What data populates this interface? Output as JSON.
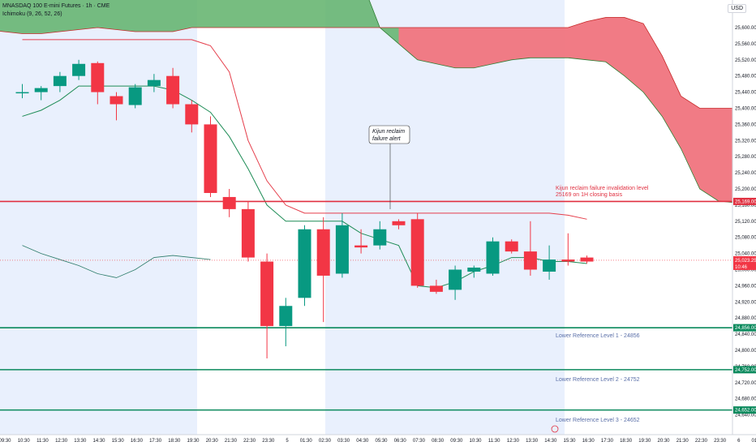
{
  "header": {
    "instrument": "MNASDAQ 100 E-mini Futures · 1h · CME",
    "indicator": "Ichimoku (9, 26, 52, 26)",
    "currency": "USD"
  },
  "colors": {
    "up": "#089981",
    "down": "#f23645",
    "red_level": "#e03040",
    "green_level": "#0b8a5d",
    "cloud_bull": "#5fb26a",
    "cloud_bear": "#f0747e",
    "session_shade": "#e9f0fd",
    "label_text": "#5a6fa8"
  },
  "chart_data": {
    "type": "candlestick",
    "ylim": [
      24640,
      25700
    ],
    "y_ticks": [
      "25,600.00",
      "25,560.00",
      "25,520.00",
      "25,480.00",
      "25,440.00",
      "25,400.00",
      "25,360.00",
      "25,320.00",
      "25,280.00",
      "25,240.00",
      "25,200.00",
      "25,160.00",
      "25,120.00",
      "25,080.00",
      "25,040.00",
      "25,000.00",
      "24,960.00",
      "24,920.00",
      "24,880.00",
      "24,840.00",
      "24,800.00",
      "24,760.00",
      "24,720.00",
      "24,680.00",
      "24,640.00"
    ],
    "x_ticks": [
      "09:30",
      "10:30",
      "11:30",
      "12:30",
      "13:30",
      "14:30",
      "15:30",
      "16:30",
      "17:30",
      "18:30",
      "19:30",
      "20:30",
      "21:30",
      "22:30",
      "23:30",
      "5",
      "01:30",
      "02:30",
      "03:30",
      "04:30",
      "05:30",
      "06:30",
      "07:30",
      "08:30",
      "09:30",
      "10:30",
      "11:30",
      "12:30",
      "13:30",
      "14:30",
      "15:30",
      "16:30",
      "17:30",
      "18:30",
      "19:30",
      "20:30",
      "21:30",
      "22:30",
      "23:30",
      "6",
      "01:30"
    ],
    "candles": [
      {
        "o": 25440,
        "h": 25460,
        "l": 25425,
        "c": 25440
      },
      {
        "o": 25440,
        "h": 25455,
        "l": 25420,
        "c": 25450
      },
      {
        "o": 25455,
        "h": 25490,
        "l": 25440,
        "c": 25480
      },
      {
        "o": 25480,
        "h": 25520,
        "l": 25470,
        "c": 25510
      },
      {
        "o": 25512,
        "h": 25516,
        "l": 25410,
        "c": 25440
      },
      {
        "o": 25430,
        "h": 25440,
        "l": 25370,
        "c": 25410
      },
      {
        "o": 25408,
        "h": 25460,
        "l": 25400,
        "c": 25452
      },
      {
        "o": 25455,
        "h": 25485,
        "l": 25440,
        "c": 25470
      },
      {
        "o": 25480,
        "h": 25500,
        "l": 25400,
        "c": 25410
      },
      {
        "o": 25410,
        "h": 25420,
        "l": 25340,
        "c": 25360
      },
      {
        "o": 25360,
        "h": 25380,
        "l": 25180,
        "c": 25190
      },
      {
        "o": 25180,
        "h": 25200,
        "l": 25130,
        "c": 25150
      },
      {
        "o": 25150,
        "h": 25170,
        "l": 25020,
        "c": 25030
      },
      {
        "o": 25020,
        "h": 25040,
        "l": 24780,
        "c": 24860
      },
      {
        "o": 24860,
        "h": 24930,
        "l": 24810,
        "c": 24910
      },
      {
        "o": 24930,
        "h": 25110,
        "l": 24910,
        "c": 25100
      },
      {
        "o": 25100,
        "h": 25130,
        "l": 24870,
        "c": 24985
      },
      {
        "o": 24990,
        "h": 25140,
        "l": 24980,
        "c": 25110
      },
      {
        "o": 25060,
        "h": 25100,
        "l": 25040,
        "c": 25055
      },
      {
        "o": 25060,
        "h": 25120,
        "l": 25050,
        "c": 25100
      },
      {
        "o": 25120,
        "h": 25125,
        "l": 25100,
        "c": 25110
      },
      {
        "o": 25125,
        "h": 25140,
        "l": 24955,
        "c": 24960
      },
      {
        "o": 24960,
        "h": 24975,
        "l": 24940,
        "c": 24945
      },
      {
        "o": 24950,
        "h": 25010,
        "l": 24925,
        "c": 25000
      },
      {
        "o": 24995,
        "h": 25010,
        "l": 24980,
        "c": 25005
      },
      {
        "o": 24990,
        "h": 25080,
        "l": 24985,
        "c": 25070
      },
      {
        "o": 25070,
        "h": 25075,
        "l": 25040,
        "c": 25045
      },
      {
        "o": 25045,
        "h": 25120,
        "l": 24985,
        "c": 25000
      },
      {
        "o": 24995,
        "h": 25060,
        "l": 24975,
        "c": 25025
      },
      {
        "o": 25025,
        "h": 25090,
        "l": 25010,
        "c": 25020
      },
      {
        "o": 25030,
        "h": 25035,
        "l": 25015,
        "c": 25020
      }
    ],
    "kijun": [
      25380,
      25395,
      25420,
      25455,
      25455,
      25455,
      25455,
      25455,
      25445,
      25420,
      25390,
      25330,
      25250,
      25160,
      25120,
      25120,
      25120,
      25120,
      25090,
      25075,
      25060,
      24960,
      24955,
      24970,
      24995,
      25010,
      25030,
      25030,
      25020,
      25020,
      25015
    ],
    "tenkan": [
      25570,
      25570,
      25570,
      25570,
      25570,
      25570,
      25570,
      25570,
      25570,
      25570,
      25555,
      25490,
      25320,
      25220,
      25160,
      25140,
      25140,
      25140,
      25140,
      25140,
      25140,
      25140,
      25140,
      25140,
      25140,
      25140,
      25140,
      25140,
      25140,
      25135,
      25125
    ],
    "chikou": [
      25060,
      25040,
      25025,
      25010,
      24990,
      24980,
      25000,
      25030,
      25035,
      25030,
      25025
    ],
    "cloud": {
      "x_start": -3,
      "span_a": [
        25720,
        25720,
        25720,
        25720,
        25720,
        25720,
        25720,
        25720,
        25720,
        25720,
        25720,
        25720,
        25720,
        25720,
        25720,
        25720,
        25720,
        25720,
        25720,
        25720,
        25720,
        25720,
        25600,
        25560,
        25520,
        25510,
        25500,
        25500,
        25510,
        25520,
        25525,
        25525,
        25525,
        25520,
        25515,
        25480,
        25440,
        25380,
        25300,
        25200,
        25170,
        25165
      ],
      "span_b": [
        25590,
        25595,
        25590,
        25585,
        25585,
        25590,
        25595,
        25600,
        25595,
        25590,
        25590,
        25590,
        25600,
        25600,
        25600,
        25600,
        25600,
        25600,
        25600,
        25600,
        25600,
        25600,
        25600,
        25600,
        25600,
        25600,
        25600,
        25600,
        25600,
        25600,
        25600,
        25600,
        25600,
        25615,
        25625,
        25625,
        25610,
        25530,
        25430,
        25400,
        25400,
        25400
      ]
    },
    "levels": [
      {
        "value": 25169,
        "label": "25,169.00",
        "color": "red"
      },
      {
        "value": 24856,
        "label": "24,856.00",
        "color": "green"
      },
      {
        "value": 24752,
        "label": "24,752.00",
        "color": "green"
      },
      {
        "value": 24652,
        "label": "24,652.00",
        "color": "green"
      }
    ],
    "current_price": {
      "value": 25023.25,
      "label": "25,023.25",
      "timer": "10:46"
    },
    "annotations": {
      "kijun_callout": [
        "Kijun reclaim",
        "failure alert"
      ],
      "invalidation": [
        "Kijun reclaim failure invalidation level",
        "25169 on 1H closing basis"
      ],
      "lower_1": "Lower Reference Level 1 - 24856",
      "lower_2": "Lower Reference Level 2 - 24752",
      "lower_3": "Lower Reference Level 3 - 24652"
    }
  }
}
